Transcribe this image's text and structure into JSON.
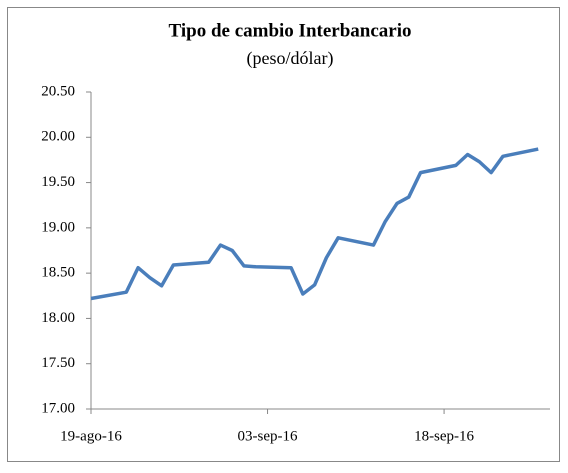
{
  "chart_data": {
    "type": "line",
    "title": "Tipo de cambio Interbancario",
    "subtitle": "(peso/dólar)",
    "x": [
      "2016-08-19",
      "2016-08-22",
      "2016-08-23",
      "2016-08-24",
      "2016-08-25",
      "2016-08-26",
      "2016-08-29",
      "2016-08-30",
      "2016-08-31",
      "2016-09-01",
      "2016-09-02",
      "2016-09-05",
      "2016-09-06",
      "2016-09-07",
      "2016-09-08",
      "2016-09-09",
      "2016-09-12",
      "2016-09-13",
      "2016-09-14",
      "2016-09-15",
      "2016-09-16",
      "2016-09-19",
      "2016-09-20",
      "2016-09-21",
      "2016-09-22",
      "2016-09-23",
      "2016-09-26"
    ],
    "series": [
      {
        "color": "#4a7ebb",
        "values": [
          18.22,
          18.29,
          18.56,
          18.45,
          18.36,
          18.59,
          18.62,
          18.81,
          18.75,
          18.58,
          18.57,
          18.56,
          18.27,
          18.37,
          18.67,
          18.89,
          18.81,
          19.07,
          19.27,
          19.34,
          19.61,
          19.69,
          19.81,
          19.73,
          19.61,
          19.79,
          19.87
        ]
      }
    ],
    "xlim": [
      "2016-08-19",
      "2016-09-27"
    ],
    "xticks": [
      {
        "value": "2016-08-19",
        "label": "19-ago-16"
      },
      {
        "value": "2016-09-03",
        "label": "03-sep-16"
      },
      {
        "value": "2016-09-18",
        "label": "18-sep-16"
      }
    ],
    "ylim": [
      17,
      20.5
    ],
    "yticks": [
      {
        "value": 17,
        "label": "17.00"
      },
      {
        "value": 17.5,
        "label": "17.50"
      },
      {
        "value": 18,
        "label": "18.00"
      },
      {
        "value": 18.5,
        "label": "18.50"
      },
      {
        "value": 19,
        "label": "19.00"
      },
      {
        "value": 19.5,
        "label": "19.50"
      },
      {
        "value": 20,
        "label": "20.00"
      },
      {
        "value": 20.5,
        "label": "20.50"
      }
    ],
    "grid": false
  }
}
